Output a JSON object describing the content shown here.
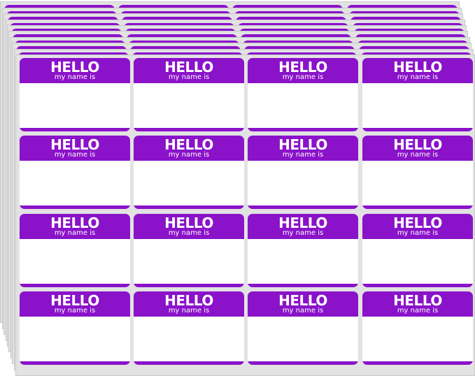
{
  "accent": "#8a12c9",
  "sheet_color": "#e2e2e2",
  "label": {
    "title": "HELLO",
    "subtitle": "my name is"
  },
  "labels": [
    {
      "title": "HELLO",
      "subtitle": "my name is"
    },
    {
      "title": "HELLO",
      "subtitle": "my name is"
    },
    {
      "title": "HELLO",
      "subtitle": "my name is"
    },
    {
      "title": "HELLO",
      "subtitle": "my name is"
    },
    {
      "title": "HELLO",
      "subtitle": "my name is"
    },
    {
      "title": "HELLO",
      "subtitle": "my name is"
    },
    {
      "title": "HELLO",
      "subtitle": "my name is"
    },
    {
      "title": "HELLO",
      "subtitle": "my name is"
    },
    {
      "title": "HELLO",
      "subtitle": "my name is"
    },
    {
      "title": "HELLO",
      "subtitle": "my name is"
    },
    {
      "title": "HELLO",
      "subtitle": "my name is"
    },
    {
      "title": "HELLO",
      "subtitle": "my name is"
    },
    {
      "title": "HELLO",
      "subtitle": "my name is"
    },
    {
      "title": "HELLO",
      "subtitle": "my name is"
    },
    {
      "title": "HELLO",
      "subtitle": "my name is"
    },
    {
      "title": "HELLO",
      "subtitle": "my name is"
    }
  ]
}
